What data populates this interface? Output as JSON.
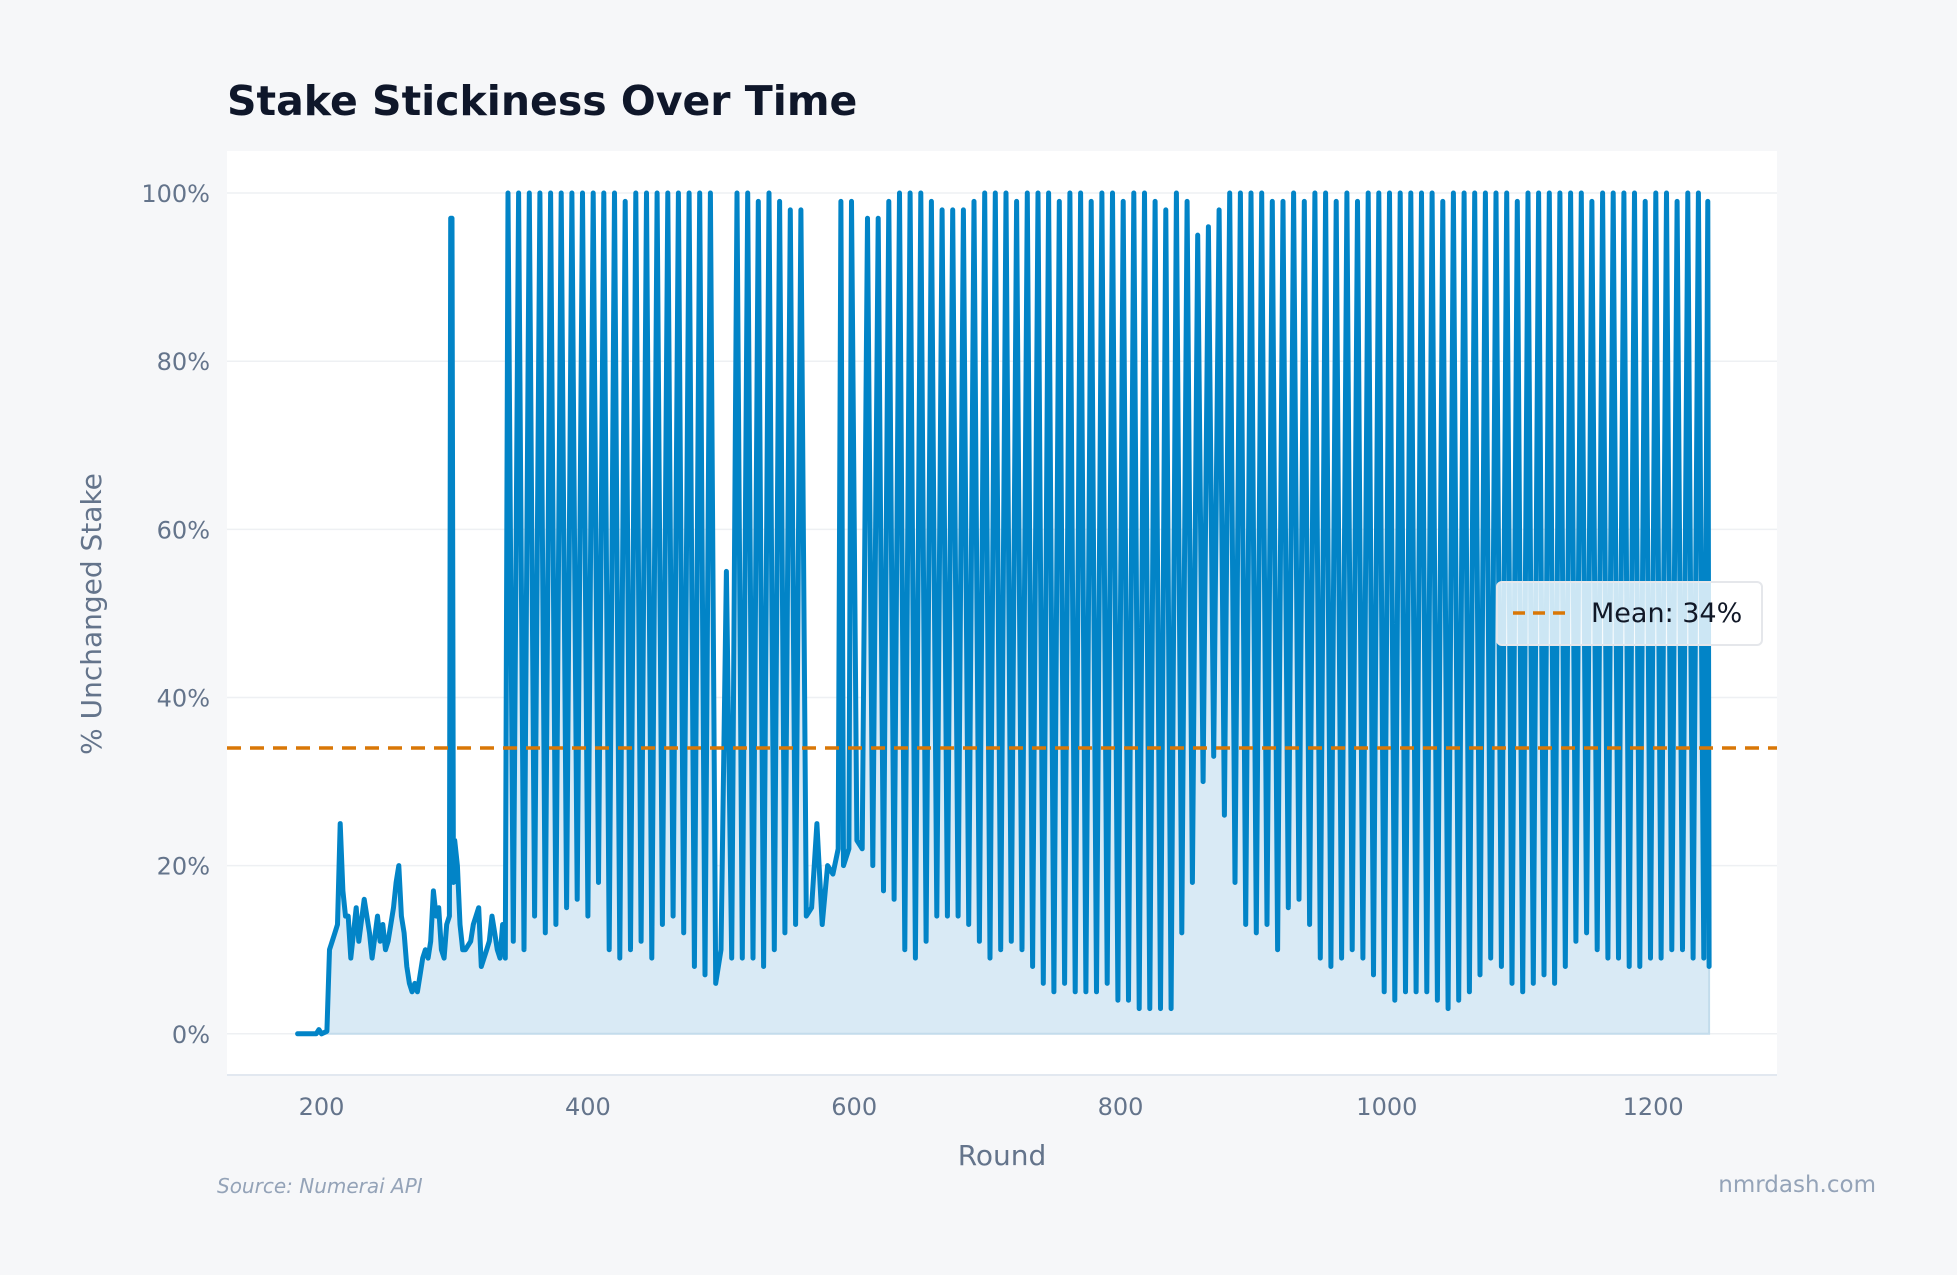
{
  "chart_data": {
    "type": "area",
    "title": "Stake Stickiness Over Time",
    "xlabel": "Round",
    "ylabel": "% Unchanged Stake",
    "xlim": [
      129,
      1293
    ],
    "ylim": [
      -4.9,
      105
    ],
    "x_ticks": [
      200,
      400,
      600,
      800,
      1000,
      1200
    ],
    "x_tick_labels": [
      "200",
      "400",
      "600",
      "800",
      "1000",
      "1200"
    ],
    "y_ticks": [
      0,
      20,
      40,
      60,
      80,
      100
    ],
    "y_tick_labels": [
      "0%",
      "20%",
      "40%",
      "60%",
      "80%",
      "100%"
    ],
    "grid": true,
    "legend_placement": "right",
    "colors": {
      "line": "#0284c7",
      "fill": "#d9eaf5",
      "mean": "#d97706"
    },
    "mean": {
      "value": 34,
      "label": "Mean: 34%"
    },
    "series": [
      {
        "points": [
          [
            182,
            0
          ],
          [
            190,
            0
          ],
          [
            196,
            0
          ],
          [
            198,
            0.5
          ],
          [
            200,
            0
          ],
          [
            204,
            0.3
          ],
          [
            206,
            10
          ],
          [
            208,
            11
          ],
          [
            210,
            12
          ],
          [
            212,
            13
          ],
          [
            214,
            25
          ],
          [
            216,
            17
          ],
          [
            218,
            14
          ],
          [
            220,
            14
          ],
          [
            222,
            9
          ],
          [
            226,
            15
          ],
          [
            228,
            11
          ],
          [
            232,
            16
          ],
          [
            236,
            12
          ],
          [
            238,
            9
          ],
          [
            242,
            14
          ],
          [
            244,
            11
          ],
          [
            246,
            13
          ],
          [
            248,
            10
          ],
          [
            250,
            11
          ],
          [
            254,
            15
          ],
          [
            256,
            18
          ],
          [
            258,
            20
          ],
          [
            260,
            14
          ],
          [
            262,
            12
          ],
          [
            264,
            8
          ],
          [
            266,
            6
          ],
          [
            268,
            5
          ],
          [
            270,
            6
          ],
          [
            272,
            5
          ],
          [
            274,
            7
          ],
          [
            276,
            9
          ],
          [
            278,
            10
          ],
          [
            280,
            9
          ],
          [
            282,
            11
          ],
          [
            284,
            17
          ],
          [
            286,
            14
          ],
          [
            288,
            15
          ],
          [
            290,
            10
          ],
          [
            292,
            9
          ],
          [
            294,
            13
          ],
          [
            296,
            14
          ],
          [
            297,
            97
          ],
          [
            298,
            97
          ],
          [
            299,
            18
          ],
          [
            300,
            23
          ],
          [
            302,
            20
          ],
          [
            304,
            13
          ],
          [
            306,
            10
          ],
          [
            308,
            10
          ],
          [
            312,
            11
          ],
          [
            314,
            13
          ],
          [
            316,
            14
          ],
          [
            318,
            15
          ],
          [
            320,
            8
          ],
          [
            322,
            9
          ],
          [
            324,
            10
          ],
          [
            326,
            11
          ],
          [
            328,
            14
          ],
          [
            330,
            12
          ],
          [
            332,
            10
          ],
          [
            334,
            9
          ],
          [
            336,
            13
          ],
          [
            338,
            9
          ],
          [
            340,
            100
          ],
          [
            344,
            11
          ],
          [
            348,
            100
          ],
          [
            352,
            10
          ],
          [
            356,
            100
          ],
          [
            360,
            14
          ],
          [
            364,
            100
          ],
          [
            368,
            12
          ],
          [
            372,
            100
          ],
          [
            376,
            13
          ],
          [
            380,
            100
          ],
          [
            384,
            15
          ],
          [
            388,
            100
          ],
          [
            392,
            16
          ],
          [
            396,
            100
          ],
          [
            400,
            14
          ],
          [
            404,
            100
          ],
          [
            408,
            18
          ],
          [
            412,
            100
          ],
          [
            416,
            10
          ],
          [
            420,
            100
          ],
          [
            424,
            9
          ],
          [
            428,
            99
          ],
          [
            432,
            10
          ],
          [
            436,
            100
          ],
          [
            440,
            11
          ],
          [
            444,
            100
          ],
          [
            448,
            9
          ],
          [
            452,
            100
          ],
          [
            456,
            13
          ],
          [
            460,
            100
          ],
          [
            464,
            14
          ],
          [
            468,
            100
          ],
          [
            472,
            12
          ],
          [
            476,
            100
          ],
          [
            480,
            8
          ],
          [
            484,
            100
          ],
          [
            488,
            7
          ],
          [
            492,
            100
          ],
          [
            496,
            6
          ],
          [
            500,
            10
          ],
          [
            504,
            55
          ],
          [
            508,
            9
          ],
          [
            512,
            100
          ],
          [
            516,
            9
          ],
          [
            520,
            100
          ],
          [
            524,
            9
          ],
          [
            528,
            99
          ],
          [
            532,
            8
          ],
          [
            536,
            100
          ],
          [
            540,
            10
          ],
          [
            544,
            99
          ],
          [
            548,
            12
          ],
          [
            552,
            98
          ],
          [
            556,
            13
          ],
          [
            560,
            98
          ],
          [
            564,
            14
          ],
          [
            568,
            15
          ],
          [
            572,
            25
          ],
          [
            576,
            13
          ],
          [
            580,
            20
          ],
          [
            584,
            19
          ],
          [
            588,
            22
          ],
          [
            590,
            99
          ],
          [
            592,
            20
          ],
          [
            596,
            22
          ],
          [
            598,
            99
          ],
          [
            602,
            23
          ],
          [
            606,
            22
          ],
          [
            610,
            97
          ],
          [
            614,
            20
          ],
          [
            618,
            97
          ],
          [
            622,
            17
          ],
          [
            626,
            99
          ],
          [
            630,
            16
          ],
          [
            634,
            100
          ],
          [
            638,
            10
          ],
          [
            642,
            100
          ],
          [
            646,
            9
          ],
          [
            650,
            100
          ],
          [
            654,
            11
          ],
          [
            658,
            99
          ],
          [
            662,
            14
          ],
          [
            666,
            98
          ],
          [
            670,
            14
          ],
          [
            674,
            98
          ],
          [
            678,
            14
          ],
          [
            682,
            98
          ],
          [
            686,
            13
          ],
          [
            690,
            99
          ],
          [
            694,
            11
          ],
          [
            698,
            100
          ],
          [
            702,
            9
          ],
          [
            706,
            100
          ],
          [
            710,
            10
          ],
          [
            714,
            100
          ],
          [
            718,
            11
          ],
          [
            722,
            99
          ],
          [
            726,
            10
          ],
          [
            730,
            100
          ],
          [
            734,
            8
          ],
          [
            738,
            100
          ],
          [
            742,
            6
          ],
          [
            746,
            100
          ],
          [
            750,
            5
          ],
          [
            754,
            99
          ],
          [
            758,
            6
          ],
          [
            762,
            100
          ],
          [
            766,
            5
          ],
          [
            770,
            100
          ],
          [
            774,
            5
          ],
          [
            778,
            99
          ],
          [
            782,
            5
          ],
          [
            786,
            100
          ],
          [
            790,
            6
          ],
          [
            794,
            100
          ],
          [
            798,
            4
          ],
          [
            802,
            99
          ],
          [
            806,
            4
          ],
          [
            810,
            100
          ],
          [
            814,
            3
          ],
          [
            818,
            100
          ],
          [
            822,
            3
          ],
          [
            826,
            99
          ],
          [
            830,
            3
          ],
          [
            834,
            98
          ],
          [
            838,
            3
          ],
          [
            842,
            100
          ],
          [
            846,
            12
          ],
          [
            850,
            99
          ],
          [
            854,
            18
          ],
          [
            858,
            95
          ],
          [
            862,
            30
          ],
          [
            866,
            96
          ],
          [
            870,
            33
          ],
          [
            874,
            98
          ],
          [
            878,
            26
          ],
          [
            882,
            100
          ],
          [
            886,
            18
          ],
          [
            890,
            100
          ],
          [
            894,
            13
          ],
          [
            898,
            100
          ],
          [
            902,
            12
          ],
          [
            906,
            100
          ],
          [
            910,
            13
          ],
          [
            914,
            99
          ],
          [
            918,
            10
          ],
          [
            922,
            99
          ],
          [
            926,
            15
          ],
          [
            930,
            100
          ],
          [
            934,
            16
          ],
          [
            938,
            99
          ],
          [
            942,
            13
          ],
          [
            946,
            100
          ],
          [
            950,
            9
          ],
          [
            954,
            100
          ],
          [
            958,
            8
          ],
          [
            962,
            99
          ],
          [
            966,
            9
          ],
          [
            970,
            100
          ],
          [
            974,
            10
          ],
          [
            978,
            99
          ],
          [
            982,
            9
          ],
          [
            986,
            100
          ],
          [
            990,
            7
          ],
          [
            994,
            100
          ],
          [
            998,
            5
          ],
          [
            1002,
            100
          ],
          [
            1006,
            4
          ],
          [
            1010,
            100
          ],
          [
            1014,
            5
          ],
          [
            1018,
            100
          ],
          [
            1022,
            5
          ],
          [
            1026,
            100
          ],
          [
            1030,
            5
          ],
          [
            1034,
            100
          ],
          [
            1038,
            4
          ],
          [
            1042,
            99
          ],
          [
            1046,
            3
          ],
          [
            1050,
            100
          ],
          [
            1054,
            4
          ],
          [
            1058,
            100
          ],
          [
            1062,
            5
          ],
          [
            1066,
            100
          ],
          [
            1070,
            7
          ],
          [
            1074,
            100
          ],
          [
            1078,
            9
          ],
          [
            1082,
            100
          ],
          [
            1086,
            8
          ],
          [
            1090,
            100
          ],
          [
            1094,
            6
          ],
          [
            1098,
            99
          ],
          [
            1102,
            5
          ],
          [
            1106,
            100
          ],
          [
            1110,
            6
          ],
          [
            1114,
            100
          ],
          [
            1118,
            7
          ],
          [
            1122,
            100
          ],
          [
            1126,
            6
          ],
          [
            1130,
            100
          ],
          [
            1134,
            8
          ],
          [
            1138,
            100
          ],
          [
            1142,
            11
          ],
          [
            1146,
            100
          ],
          [
            1150,
            12
          ],
          [
            1154,
            99
          ],
          [
            1158,
            10
          ],
          [
            1162,
            100
          ],
          [
            1166,
            9
          ],
          [
            1170,
            100
          ],
          [
            1174,
            9
          ],
          [
            1178,
            100
          ],
          [
            1182,
            8
          ],
          [
            1186,
            100
          ],
          [
            1190,
            8
          ],
          [
            1194,
            99
          ],
          [
            1198,
            9
          ],
          [
            1202,
            100
          ],
          [
            1206,
            9
          ],
          [
            1210,
            100
          ],
          [
            1214,
            10
          ],
          [
            1218,
            99
          ],
          [
            1222,
            10
          ],
          [
            1226,
            100
          ],
          [
            1230,
            9
          ],
          [
            1234,
            100
          ],
          [
            1238,
            9
          ],
          [
            1241,
            99
          ],
          [
            1242,
            8
          ]
        ]
      }
    ]
  },
  "footer": {
    "source": "Source: Numerai API",
    "brand": "nmrdash.com"
  }
}
